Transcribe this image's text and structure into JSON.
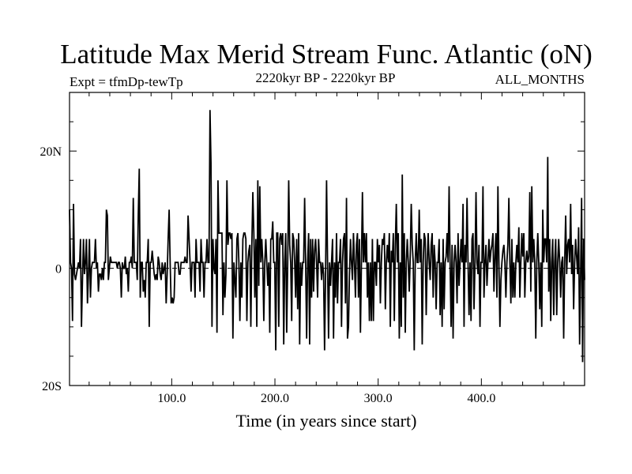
{
  "chart_data": {
    "type": "line",
    "title": "Latitude Max Merid Stream Func. Atlantic (oN)",
    "subtitle_left": "Expt = tfmDp-tewTp",
    "subtitle_center": "2220kyr BP - 2220kyr BP",
    "subtitle_right": "ALL_MONTHS",
    "xlabel": "Time (in years since start)",
    "ylabel": "",
    "xlim": [
      1,
      500
    ],
    "ylim": [
      -20,
      30
    ],
    "x_ticks": [
      {
        "value": 100,
        "label": "100.0"
      },
      {
        "value": 200,
        "label": "200.0"
      },
      {
        "value": 300,
        "label": "300.0"
      },
      {
        "value": 400,
        "label": "400.0"
      }
    ],
    "y_ticks": [
      {
        "value": 20,
        "label": "20N"
      },
      {
        "value": 0,
        "label": "0"
      },
      {
        "value": -20,
        "label": "20S"
      }
    ],
    "zero_line": "dashed",
    "grid": false,
    "series": [
      {
        "values": [
          10,
          1,
          0,
          -9,
          11,
          -1,
          -2,
          -1,
          0,
          1,
          0,
          5,
          -10,
          -2,
          5,
          -1,
          1,
          5,
          -6,
          -1,
          5,
          -5,
          0,
          1,
          1,
          1,
          5,
          0,
          1,
          -4,
          -1,
          -1,
          -2,
          0,
          -2,
          1,
          1,
          10,
          9,
          -2,
          0,
          2,
          1,
          1,
          1,
          1,
          1,
          1,
          0,
          1,
          1,
          0,
          -5,
          1,
          0,
          0,
          2,
          -1,
          0,
          -4,
          1,
          1,
          2,
          0,
          12,
          1,
          1,
          1,
          -2,
          9,
          17,
          -5,
          1,
          1,
          -4,
          -2,
          -5,
          1,
          1,
          5,
          -10,
          1,
          1,
          3,
          1,
          -1,
          -2,
          -1,
          -2,
          2,
          1,
          -1,
          -2,
          1,
          -1,
          0,
          1,
          -6,
          -1,
          5,
          10,
          1,
          -6,
          -5,
          -6,
          -5,
          1,
          1,
          1,
          1,
          -1,
          -1,
          1,
          1,
          1,
          1,
          2,
          1,
          1,
          9,
          5,
          1,
          -4,
          1,
          1,
          1,
          -5,
          5,
          1,
          1,
          1,
          -4,
          5,
          1,
          1,
          -5,
          1,
          1,
          5,
          1,
          1,
          27,
          18,
          -10,
          5,
          0,
          -1,
          5,
          -11,
          15,
          6,
          6,
          6,
          6,
          -8,
          1,
          -5,
          -1,
          15,
          4,
          6,
          6,
          5,
          6,
          -12,
          1,
          -2,
          -5,
          5,
          6,
          1,
          -9,
          1,
          -5,
          5,
          6,
          6,
          5,
          -9,
          1,
          3,
          4,
          -10,
          4,
          13,
          6,
          -5,
          5,
          -10,
          15,
          -3,
          14,
          1,
          5,
          1,
          -9,
          1,
          5,
          1,
          -3,
          1,
          -11,
          5,
          5,
          8,
          1,
          1,
          -14,
          6,
          6,
          -10,
          5,
          6,
          4,
          6,
          -13,
          1,
          6,
          -11,
          1,
          15,
          4,
          1,
          -9,
          6,
          5,
          1,
          -5,
          5,
          -7,
          6,
          -13,
          1,
          -3,
          1,
          1,
          12,
          1,
          -12,
          1,
          6,
          -13,
          5,
          -5,
          5,
          -4,
          3,
          5,
          1,
          -5,
          5,
          1,
          1,
          -2,
          1,
          -1,
          -14,
          -1,
          15,
          1,
          -12,
          1,
          -3,
          1,
          5,
          -12,
          1,
          -5,
          6,
          -6,
          1,
          1,
          5,
          -10,
          1,
          5,
          6,
          -6,
          12,
          -12,
          -10,
          -1,
          5,
          1,
          -2,
          6,
          1,
          -5,
          4,
          6,
          -5,
          5,
          -11,
          1,
          13,
          1,
          6,
          1,
          6,
          -5,
          1,
          -9,
          1,
          -9,
          5,
          -9,
          1,
          1,
          -3,
          5,
          1,
          4,
          -6,
          1,
          5,
          4,
          6,
          -7,
          1,
          4,
          1,
          6,
          -10,
          3,
          1,
          6,
          -9,
          4,
          11,
          1,
          6,
          -12,
          1,
          -10,
          16,
          -5,
          6,
          -11,
          1,
          5,
          1,
          -4,
          2,
          11,
          4,
          1,
          -14,
          1,
          6,
          1,
          1,
          10,
          1,
          5,
          -13,
          1,
          6,
          5,
          -8,
          1,
          6,
          1,
          -2,
          4,
          6,
          -5,
          4,
          1,
          -7,
          1,
          1,
          5,
          -8,
          1,
          -10,
          5,
          -7,
          1,
          2,
          6,
          1,
          14,
          1,
          -10,
          4,
          -12,
          1,
          4,
          1,
          -6,
          6,
          -3,
          1,
          5,
          1,
          11,
          -10,
          4,
          1,
          12,
          1,
          -8,
          1,
          -9,
          5,
          6,
          -7,
          1,
          13,
          1,
          -1,
          4,
          -10,
          1,
          1,
          14,
          -5,
          1,
          4,
          -3,
          1,
          5,
          1,
          3,
          4,
          6,
          -4,
          2,
          6,
          -5,
          14,
          1,
          -10,
          -2,
          1,
          3,
          4,
          1,
          -5,
          1,
          4,
          12,
          1,
          -6,
          5,
          -5,
          1,
          -5,
          1,
          4,
          1,
          7,
          -5,
          1,
          6,
          2,
          6,
          -5,
          1,
          3,
          1,
          2,
          13,
          -4,
          14,
          1,
          5,
          1,
          -12,
          1,
          6,
          1,
          -7,
          1,
          -10,
          10,
          1,
          5,
          5,
          1,
          19,
          -4,
          5,
          -9,
          1,
          5,
          -8,
          1,
          5,
          -8,
          1,
          5,
          1,
          -5,
          1,
          2,
          -12,
          1,
          9,
          -1,
          4,
          5,
          1,
          11,
          -1,
          4,
          -7,
          1,
          5,
          2,
          -1,
          7,
          -13,
          -1,
          12,
          -16,
          5,
          -2
        ]
      }
    ]
  }
}
